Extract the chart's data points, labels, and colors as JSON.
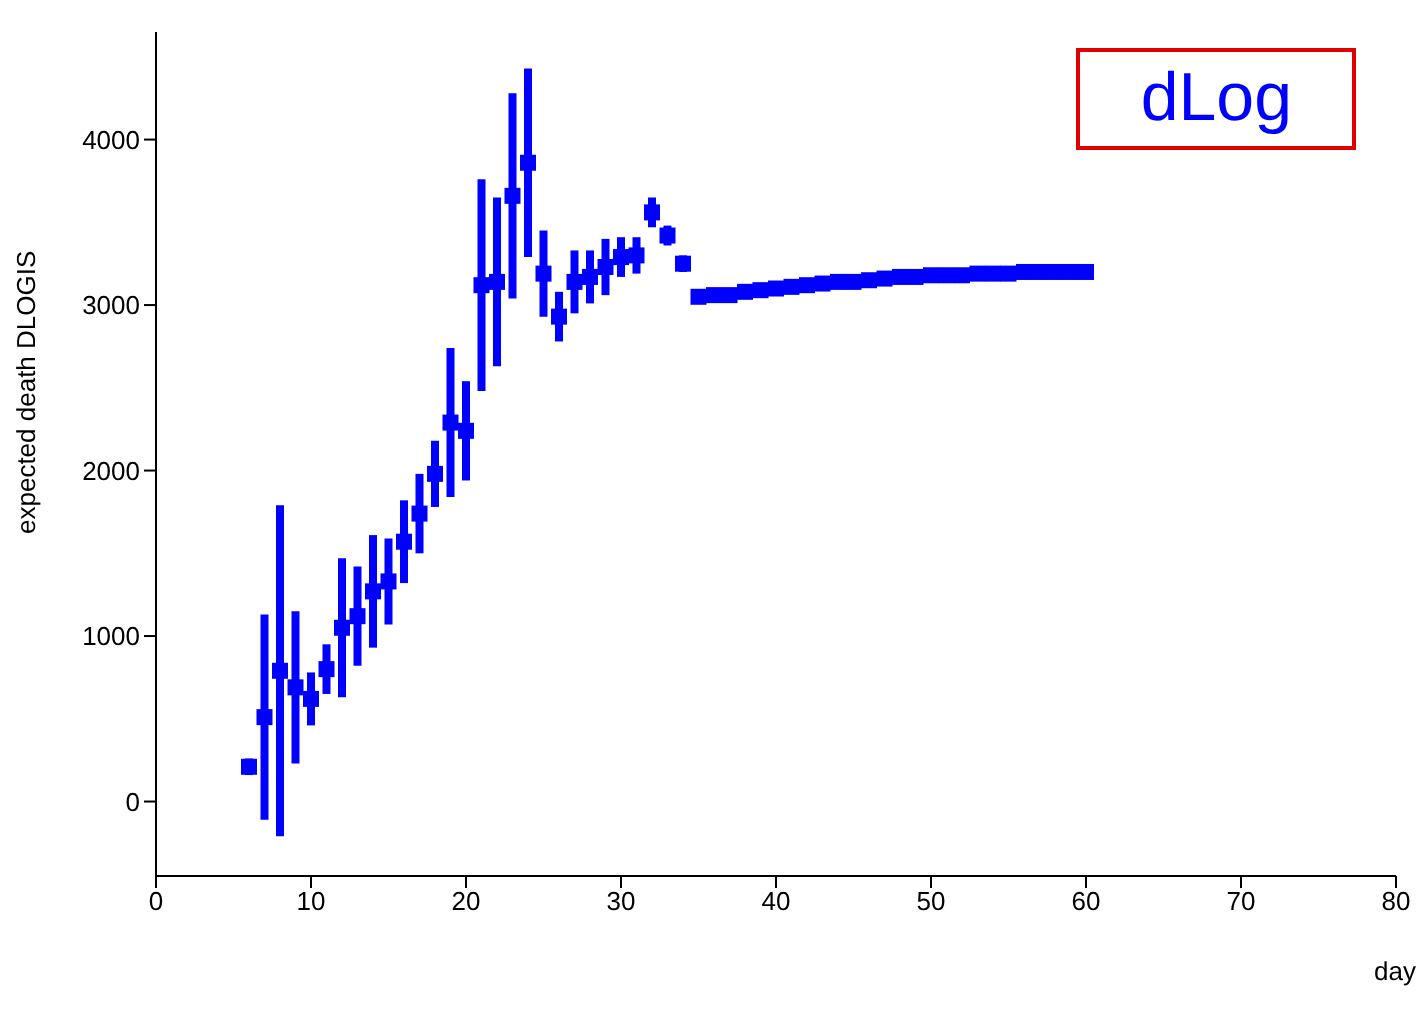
{
  "chart_data": {
    "type": "scatter",
    "xlabel": "day",
    "ylabel": "expected death DLOGIS",
    "annotations": [
      "dLog"
    ],
    "marker": "square",
    "grid": false,
    "legend": false,
    "xlim": [
      0,
      80
    ],
    "xticks": [
      0,
      10,
      20,
      30,
      40,
      50,
      60,
      70,
      80
    ],
    "ylim": [
      -450,
      4650
    ],
    "yticks": [
      0,
      1000,
      2000,
      3000,
      4000
    ],
    "series": [
      {
        "color": "#0000ff",
        "x": [
          6,
          7,
          8,
          9,
          10,
          11,
          12,
          13,
          14,
          15,
          16,
          17,
          18,
          19,
          20,
          21,
          22,
          23,
          24,
          25,
          26,
          27,
          28,
          29,
          30,
          31,
          32,
          33,
          34,
          35,
          36,
          37,
          38,
          39,
          40,
          41,
          42,
          43,
          44,
          45,
          46,
          47,
          48,
          49,
          50,
          51,
          52,
          53,
          54,
          55,
          56,
          57,
          58,
          59,
          60
        ],
        "values": [
          210,
          510,
          790,
          690,
          620,
          800,
          1050,
          1120,
          1270,
          1330,
          1570,
          1740,
          1980,
          2290,
          2240,
          3120,
          3140,
          3660,
          3860,
          3190,
          2930,
          3140,
          3170,
          3230,
          3290,
          3300,
          3560,
          3420,
          3250,
          3050,
          3060,
          3060,
          3080,
          3090,
          3100,
          3110,
          3120,
          3130,
          3140,
          3140,
          3150,
          3160,
          3170,
          3170,
          3180,
          3180,
          3180,
          3190,
          3190,
          3190,
          3200,
          3200,
          3200,
          3200,
          3200
        ],
        "errors": [
          50,
          620,
          1000,
          460,
          160,
          150,
          420,
          300,
          340,
          260,
          250,
          240,
          200,
          450,
          300,
          640,
          510,
          620,
          570,
          260,
          150,
          190,
          160,
          170,
          120,
          110,
          90,
          60,
          50,
          30,
          30,
          30,
          30,
          30,
          30,
          30,
          30,
          30,
          30,
          30,
          30,
          30,
          30,
          30,
          30,
          30,
          30,
          30,
          30,
          30,
          30,
          30,
          30,
          30,
          30
        ]
      }
    ]
  }
}
